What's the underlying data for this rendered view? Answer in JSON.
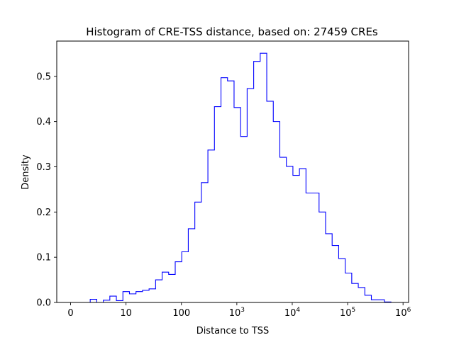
{
  "chart_data": {
    "type": "histogram-step",
    "title": "Histogram of CRE-TSS distance, based on: 27459 CREs",
    "xlabel": "Distance to TSS",
    "ylabel": "Density",
    "xscale": "symlog",
    "xlim": [
      -0.25,
      6.1
    ],
    "ylim": [
      0.0,
      0.578
    ],
    "grid": false,
    "line_color": "#0000ff",
    "x_ticks": [
      {
        "value": 0,
        "label": "0",
        "base": "0",
        "exp": ""
      },
      {
        "value": 1,
        "label": "10",
        "base": "10",
        "exp": ""
      },
      {
        "value": 2,
        "label": "100",
        "base": "100",
        "exp": ""
      },
      {
        "value": 3,
        "label": "10^3",
        "base": "10",
        "exp": "3"
      },
      {
        "value": 4,
        "label": "10^4",
        "base": "10",
        "exp": "4"
      },
      {
        "value": 5,
        "label": "10^5",
        "base": "10",
        "exp": "5"
      },
      {
        "value": 6,
        "label": "10^6",
        "base": "10",
        "exp": "6"
      }
    ],
    "y_ticks": [
      {
        "value": 0.0,
        "label": "0.0"
      },
      {
        "value": 0.1,
        "label": "0.1"
      },
      {
        "value": 0.2,
        "label": "0.2"
      },
      {
        "value": 0.3,
        "label": "0.3"
      },
      {
        "value": 0.4,
        "label": "0.4"
      },
      {
        "value": 0.5,
        "label": "0.5"
      }
    ],
    "bin_edges": [
      0.0,
      0.118,
      0.236,
      0.354,
      0.472,
      0.59,
      0.708,
      0.826,
      0.944,
      1.062,
      1.18,
      1.298,
      1.416,
      1.534,
      1.652,
      1.77,
      1.888,
      2.006,
      2.124,
      2.242,
      2.36,
      2.478,
      2.596,
      2.714,
      2.832,
      2.95,
      3.068,
      3.186,
      3.304,
      3.422,
      3.54,
      3.658,
      3.776,
      3.894,
      4.012,
      4.13,
      4.248,
      4.366,
      4.484,
      4.602,
      4.72,
      4.838,
      4.956,
      5.074,
      5.192,
      5.31,
      5.428,
      5.546,
      5.664,
      5.782,
      5.9
    ],
    "values": [
      0.0,
      0.0,
      0.0,
      0.007,
      0.0,
      0.005,
      0.014,
      0.004,
      0.024,
      0.019,
      0.024,
      0.027,
      0.03,
      0.05,
      0.067,
      0.062,
      0.09,
      0.112,
      0.163,
      0.222,
      0.265,
      0.337,
      0.433,
      0.497,
      0.49,
      0.431,
      0.367,
      0.473,
      0.533,
      0.551,
      0.445,
      0.4,
      0.321,
      0.301,
      0.281,
      0.296,
      0.242,
      0.242,
      0.2,
      0.152,
      0.126,
      0.097,
      0.065,
      0.042,
      0.033,
      0.016,
      0.006,
      0.006,
      0.001,
      0.0
    ]
  }
}
